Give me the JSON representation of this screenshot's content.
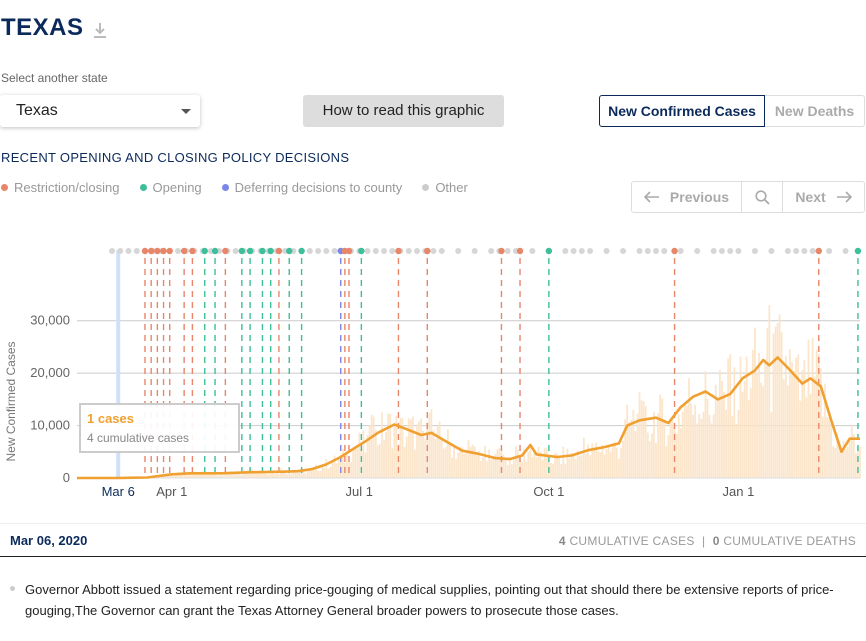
{
  "header": {
    "title": "TEXAS"
  },
  "state_select": {
    "label": "Select another state",
    "value": "Texas"
  },
  "howto_label": "How to read this graphic",
  "tabs": {
    "cases": "New Confirmed Cases",
    "deaths": "New Deaths"
  },
  "policy": {
    "title": "RECENT OPENING AND CLOSING POLICY DECISIONS",
    "legend": [
      {
        "label": "Restriction/closing",
        "color": "#e8866a"
      },
      {
        "label": "Opening",
        "color": "#3cbf9a"
      },
      {
        "label": "Deferring decisions to county",
        "color": "#7b86e8"
      },
      {
        "label": "Other",
        "color": "#cccccc"
      }
    ]
  },
  "nav": {
    "previous": "Previous",
    "next": "Next"
  },
  "tooltip": {
    "cases": "1 cases",
    "cumulative": "4 cumulative cases"
  },
  "selected": {
    "date": "Mar 06, 2020",
    "cases_count": "4",
    "cases_label": "CUMULATIVE CASES",
    "deaths_count": "0",
    "deaths_label": "CUMULATIVE DEATHS"
  },
  "note": "Governor Abbott issued a statement regarding price-gouging of medical supplies, pointing out that should there be extensive reports of price-gouging,The Governor can grant the Texas Attorney General broader powers to prosecute those cases.",
  "chart_data": {
    "type": "line",
    "title": "",
    "xlabel": "",
    "ylabel": "New Confirmed Cases",
    "ylim": [
      0,
      33000
    ],
    "xlim": [
      "2020-02-15",
      "2021-03-01"
    ],
    "grid": true,
    "x_ticks": [
      {
        "date": "2020-03-06",
        "label": "Mar 6",
        "highlight": true
      },
      {
        "date": "2020-04-01",
        "label": "Apr 1"
      },
      {
        "date": "2020-07-01",
        "label": "Jul 1"
      },
      {
        "date": "2020-10-01",
        "label": "Oct 1"
      },
      {
        "date": "2021-01-01",
        "label": "Jan 1"
      }
    ],
    "y_ticks": [
      0,
      10000,
      20000,
      30000
    ],
    "y_tick_labels": [
      "0",
      "10,000",
      "20,000",
      "30,000"
    ],
    "selected_date": "2020-03-06",
    "series": [
      {
        "values_kind": "7-day average",
        "color": "#f0a030",
        "points": [
          [
            "2020-02-15",
            0
          ],
          [
            "2020-03-06",
            0
          ],
          [
            "2020-03-20",
            100
          ],
          [
            "2020-04-01",
            700
          ],
          [
            "2020-04-10",
            900
          ],
          [
            "2020-04-25",
            900
          ],
          [
            "2020-05-10",
            1100
          ],
          [
            "2020-05-25",
            1200
          ],
          [
            "2020-06-01",
            1300
          ],
          [
            "2020-06-08",
            1700
          ],
          [
            "2020-06-15",
            2600
          ],
          [
            "2020-06-22",
            4000
          ],
          [
            "2020-06-29",
            5800
          ],
          [
            "2020-07-04",
            7000
          ],
          [
            "2020-07-10",
            8600
          ],
          [
            "2020-07-18",
            10200
          ],
          [
            "2020-07-24",
            9300
          ],
          [
            "2020-07-31",
            8200
          ],
          [
            "2020-08-05",
            8600
          ],
          [
            "2020-08-12",
            7000
          ],
          [
            "2020-08-20",
            5200
          ],
          [
            "2020-08-28",
            4600
          ],
          [
            "2020-09-05",
            3800
          ],
          [
            "2020-09-12",
            3600
          ],
          [
            "2020-09-18",
            4300
          ],
          [
            "2020-09-22",
            6300
          ],
          [
            "2020-09-25",
            4500
          ],
          [
            "2020-10-05",
            4000
          ],
          [
            "2020-10-12",
            4300
          ],
          [
            "2020-10-20",
            5300
          ],
          [
            "2020-10-28",
            5900
          ],
          [
            "2020-11-04",
            6600
          ],
          [
            "2020-11-08",
            10000
          ],
          [
            "2020-11-14",
            11000
          ],
          [
            "2020-11-22",
            11500
          ],
          [
            "2020-11-28",
            10500
          ],
          [
            "2020-12-04",
            13500
          ],
          [
            "2020-12-10",
            15500
          ],
          [
            "2020-12-16",
            16500
          ],
          [
            "2020-12-22",
            15000
          ],
          [
            "2020-12-28",
            16000
          ],
          [
            "2021-01-03",
            19000
          ],
          [
            "2021-01-09",
            20500
          ],
          [
            "2021-01-13",
            22500
          ],
          [
            "2021-01-16",
            21500
          ],
          [
            "2021-01-20",
            23000
          ],
          [
            "2021-01-25",
            21000
          ],
          [
            "2021-02-01",
            18000
          ],
          [
            "2021-02-05",
            19000
          ],
          [
            "2021-02-10",
            17500
          ],
          [
            "2021-02-15",
            11000
          ],
          [
            "2021-02-20",
            5000
          ],
          [
            "2021-02-24",
            7500
          ],
          [
            "2021-03-01",
            7500
          ]
        ]
      }
    ],
    "policy_events": [
      {
        "date": "2020-03-06",
        "type": "other"
      },
      {
        "date": "2020-03-13",
        "type": "other"
      },
      {
        "date": "2020-03-16",
        "type": "other"
      },
      {
        "date": "2020-03-19",
        "type": "restriction"
      },
      {
        "date": "2020-03-22",
        "type": "restriction"
      },
      {
        "date": "2020-03-25",
        "type": "restriction"
      },
      {
        "date": "2020-03-28",
        "type": "restriction"
      },
      {
        "date": "2020-03-31",
        "type": "restriction"
      },
      {
        "date": "2020-04-07",
        "type": "restriction"
      },
      {
        "date": "2020-04-11",
        "type": "restriction"
      },
      {
        "date": "2020-04-17",
        "type": "opening"
      },
      {
        "date": "2020-04-22",
        "type": "opening"
      },
      {
        "date": "2020-04-27",
        "type": "restriction"
      },
      {
        "date": "2020-05-05",
        "type": "opening"
      },
      {
        "date": "2020-05-09",
        "type": "opening"
      },
      {
        "date": "2020-05-15",
        "type": "opening"
      },
      {
        "date": "2020-05-19",
        "type": "opening"
      },
      {
        "date": "2020-05-23",
        "type": "restriction"
      },
      {
        "date": "2020-05-28",
        "type": "opening"
      },
      {
        "date": "2020-06-03",
        "type": "opening"
      },
      {
        "date": "2020-06-22",
        "type": "deferring"
      },
      {
        "date": "2020-06-24",
        "type": "restriction"
      },
      {
        "date": "2020-06-26",
        "type": "restriction"
      },
      {
        "date": "2020-07-02",
        "type": "opening"
      },
      {
        "date": "2020-07-11",
        "type": "other"
      },
      {
        "date": "2020-07-20",
        "type": "restriction"
      },
      {
        "date": "2020-08-03",
        "type": "restriction"
      },
      {
        "date": "2020-09-08",
        "type": "restriction"
      },
      {
        "date": "2020-09-17",
        "type": "restriction"
      },
      {
        "date": "2020-10-01",
        "type": "opening"
      },
      {
        "date": "2020-12-01",
        "type": "restriction"
      },
      {
        "date": "2021-02-09",
        "type": "restriction"
      },
      {
        "date": "2021-02-28",
        "type": "opening"
      },
      {
        "date": "2020-04-03",
        "type": "other"
      },
      {
        "date": "2020-05-01",
        "type": "other"
      },
      {
        "date": "2020-06-15",
        "type": "other"
      },
      {
        "date": "2020-08-15",
        "type": "other"
      },
      {
        "date": "2020-10-15",
        "type": "other"
      },
      {
        "date": "2020-11-05",
        "type": "other"
      },
      {
        "date": "2020-12-15",
        "type": "other"
      },
      {
        "date": "2021-01-20",
        "type": "other"
      },
      {
        "date": "2021-02-18",
        "type": "other"
      }
    ]
  }
}
